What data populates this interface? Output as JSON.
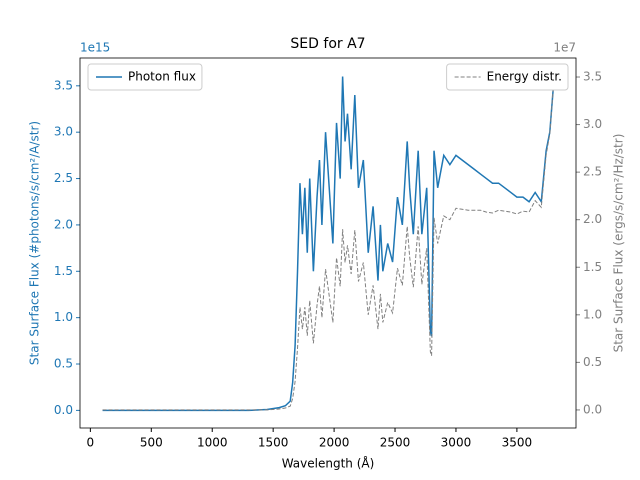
{
  "chart_data": {
    "type": "line",
    "title": "SED for A7",
    "x_label": "Wavelength (Å)",
    "y_label": "Star Surface Flux (#photons/s/cm²/A/str)",
    "y2_label": "Star Surface Flux (ergs/s/cm²/Hz/str)",
    "y_offset_label": "1e15",
    "y2_offset_label": "1e7",
    "x": [
      100,
      300,
      500,
      700,
      900,
      1100,
      1300,
      1450,
      1550,
      1600,
      1640,
      1660,
      1680,
      1700,
      1720,
      1740,
      1760,
      1780,
      1800,
      1830,
      1860,
      1880,
      1900,
      1930,
      1960,
      1990,
      2020,
      2050,
      2070,
      2090,
      2110,
      2140,
      2170,
      2200,
      2240,
      2280,
      2320,
      2360,
      2380,
      2400,
      2440,
      2480,
      2520,
      2560,
      2600,
      2620,
      2650,
      2690,
      2720,
      2760,
      2790,
      2800,
      2820,
      2850,
      2900,
      2950,
      3000,
      3050,
      3100,
      3150,
      3200,
      3250,
      3300,
      3350,
      3400,
      3450,
      3500,
      3550,
      3600,
      3650,
      3700,
      3740,
      3770,
      3800
    ],
    "series": [
      {
        "name": "Photon flux",
        "color": "#1f77b4",
        "dash": false,
        "axis": "y",
        "legend": "upper left",
        "values": [
          0,
          0,
          0,
          0,
          0,
          0,
          0,
          0.01,
          0.03,
          0.05,
          0.1,
          0.3,
          0.7,
          1.5,
          2.45,
          1.9,
          2.4,
          1.7,
          2.5,
          1.5,
          2.3,
          2.7,
          2.0,
          3.0,
          2.4,
          1.8,
          3.1,
          2.5,
          3.6,
          2.9,
          3.2,
          2.6,
          3.4,
          2.4,
          2.7,
          1.7,
          2.2,
          1.4,
          2.0,
          1.5,
          1.8,
          1.6,
          2.3,
          2.0,
          2.9,
          2.4,
          1.9,
          2.8,
          1.9,
          2.4,
          0.85,
          0.8,
          2.8,
          2.4,
          2.75,
          2.65,
          2.75,
          2.7,
          2.65,
          2.6,
          2.55,
          2.5,
          2.45,
          2.45,
          2.4,
          2.35,
          2.3,
          2.3,
          2.25,
          2.35,
          2.25,
          2.8,
          3.0,
          3.5
        ]
      },
      {
        "name": "Energy distr.",
        "color": "#808080",
        "dash": true,
        "axis": "y2",
        "legend": "upper right",
        "values": [
          0,
          0,
          0,
          0,
          0,
          0,
          0,
          0,
          0.01,
          0.02,
          0.04,
          0.12,
          0.3,
          0.65,
          1.08,
          0.85,
          1.08,
          0.78,
          1.15,
          0.7,
          1.1,
          1.3,
          0.97,
          1.48,
          1.2,
          0.92,
          1.6,
          1.3,
          1.9,
          1.55,
          1.73,
          1.43,
          1.89,
          1.35,
          1.55,
          1.0,
          1.31,
          0.85,
          1.22,
          0.92,
          1.13,
          1.02,
          1.49,
          1.31,
          1.93,
          1.61,
          1.29,
          1.93,
          1.32,
          1.7,
          0.61,
          0.57,
          2.02,
          1.75,
          2.04,
          2.0,
          2.12,
          2.11,
          2.1,
          2.1,
          2.1,
          2.08,
          2.07,
          2.1,
          2.09,
          2.08,
          2.06,
          2.09,
          2.08,
          2.2,
          2.13,
          2.68,
          2.9,
          3.41
        ]
      }
    ],
    "xlim": [
      -85,
      3985
    ],
    "xticks": [
      0,
      500,
      1000,
      1500,
      2000,
      2500,
      3000,
      3500
    ],
    "ylim": [
      -0.19,
      3.8
    ],
    "yticks": [
      {
        "value": 0,
        "label": "0.0"
      },
      0.5,
      {
        "value": 1,
        "label": "1.0"
      },
      1.5,
      {
        "value": 2,
        "label": "2.0"
      },
      2.5,
      {
        "value": 3,
        "label": "3.0"
      },
      3.5
    ],
    "y_color": "#1f77b4",
    "y2lim": [
      -0.19,
      3.7
    ],
    "y2ticks": [
      {
        "value": 0,
        "label": "0.0"
      },
      0.5,
      {
        "value": 1,
        "label": "1.0"
      },
      1.5,
      {
        "value": 2,
        "label": "2.0"
      },
      2.5,
      {
        "value": 3,
        "label": "3.0"
      },
      3.5
    ],
    "y2_color": "#808080",
    "grid": false
  }
}
